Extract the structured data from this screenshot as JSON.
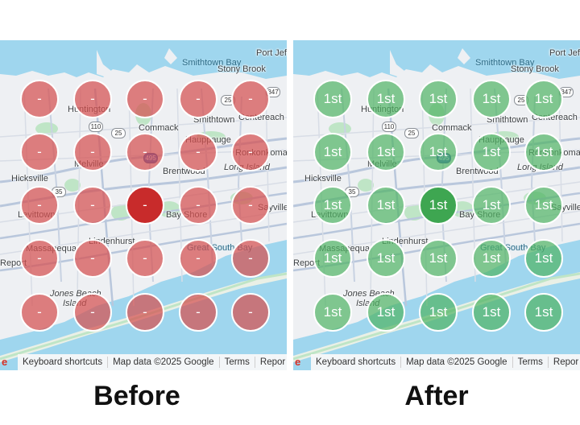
{
  "panels": [
    {
      "id": "before",
      "caption": "Before",
      "center_rank": "-",
      "rows": [
        [
          "-",
          "-",
          "-",
          "-",
          "-"
        ],
        [
          "-",
          "-",
          "-",
          "-",
          "-"
        ],
        [
          "-",
          "-",
          "-",
          "-",
          "-"
        ],
        [
          "-",
          "-",
          "-",
          "-",
          "-"
        ],
        [
          "-",
          "-",
          "-",
          "-",
          "-"
        ]
      ],
      "pin_color": "#d55050",
      "center_color": "#c82b2b"
    },
    {
      "id": "after",
      "caption": "After",
      "center_rank": "1st",
      "rows": [
        [
          "1st",
          "1st",
          "1st",
          "1st",
          "1st"
        ],
        [
          "1st",
          "1st",
          "1st",
          "1st",
          "1st"
        ],
        [
          "1st",
          "1st",
          "1st",
          "1st",
          "1st"
        ],
        [
          "1st",
          "1st",
          "1st",
          "1st",
          "1st"
        ],
        [
          "1st",
          "1st",
          "1st",
          "1st",
          "1st"
        ]
      ],
      "pin_color": "#50b464",
      "center_color": "#3ea651"
    }
  ],
  "map_labels": {
    "smithtown_bay": "Smithtown Bay",
    "port_jeff": "Port Jeff",
    "stony_brook": "Stony Brook",
    "huntington": "Huntington",
    "commack": "Commack",
    "smithtown": "Smithtown",
    "centereach": "Centereach",
    "hauppauge": "Hauppauge",
    "ronkonkoma": "Ronkonkoma",
    "long_island": "Long Island",
    "melville": "Melville",
    "brentwood": "Brentwood",
    "hicksville": "Hicksville",
    "levittown": "Levittown",
    "bay_shore": "Bay Shore",
    "sayville": "Sayville",
    "massapequa": "Massapequa",
    "lindenhurst": "Lindenhurst",
    "great_south_bay": "Great South Bay",
    "report": "Report",
    "jones_beach": "Jones Beach",
    "island": "Island"
  },
  "shields": {
    "r25a": "25",
    "r110": "110",
    "r25b": "25",
    "r495": "495",
    "r35": "35",
    "r347": "347"
  },
  "attribution": {
    "keyboard": "Keyboard shortcuts",
    "mapdata": "Map data ©2025 Google",
    "terms": "Terms",
    "report": "Repor"
  },
  "colors": {
    "water": "#9fd6ee",
    "land": "#eef0f3",
    "park": "#bfe5c6",
    "road": "#b9c7dc"
  }
}
